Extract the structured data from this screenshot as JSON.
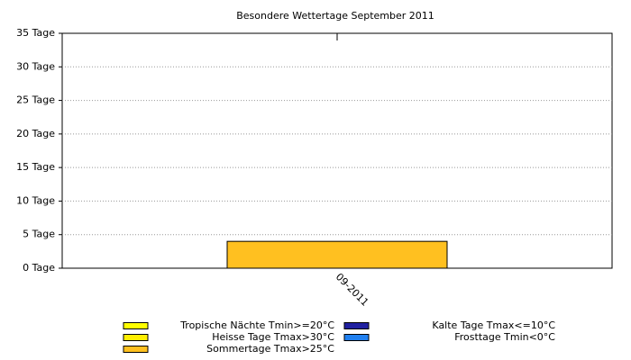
{
  "chart_data": {
    "type": "bar",
    "stacked": true,
    "title": "Besondere Wettertage September 2011",
    "categories": [
      "09-2011"
    ],
    "series": [
      {
        "name": "Tropische Nächte Tmin>=20°C",
        "color": "#ffff00",
        "values": [
          0
        ]
      },
      {
        "name": "Heisse Tage Tmax>30°C",
        "color": "#ffee00",
        "values": [
          0
        ]
      },
      {
        "name": "Sommertage Tmax>25°C",
        "color": "#ffc020",
        "values": [
          4
        ]
      },
      {
        "name": "Kalte Tage Tmax<=10°C",
        "color": "#2020a0",
        "values": [
          0
        ]
      },
      {
        "name": "Frosttage Tmin<0°C",
        "color": "#2080f0",
        "values": [
          0
        ]
      }
    ],
    "ylim": [
      0,
      35
    ],
    "yticks": [
      {
        "value": 0,
        "label": "0 Tage"
      },
      {
        "value": 5,
        "label": "5 Tage"
      },
      {
        "value": 10,
        "label": "10 Tage"
      },
      {
        "value": 15,
        "label": "15 Tage"
      },
      {
        "value": 20,
        "label": "20 Tage"
      },
      {
        "value": 25,
        "label": "25 Tage"
      },
      {
        "value": 30,
        "label": "30 Tage"
      },
      {
        "value": 35,
        "label": "35 Tage"
      }
    ],
    "grid": true
  }
}
